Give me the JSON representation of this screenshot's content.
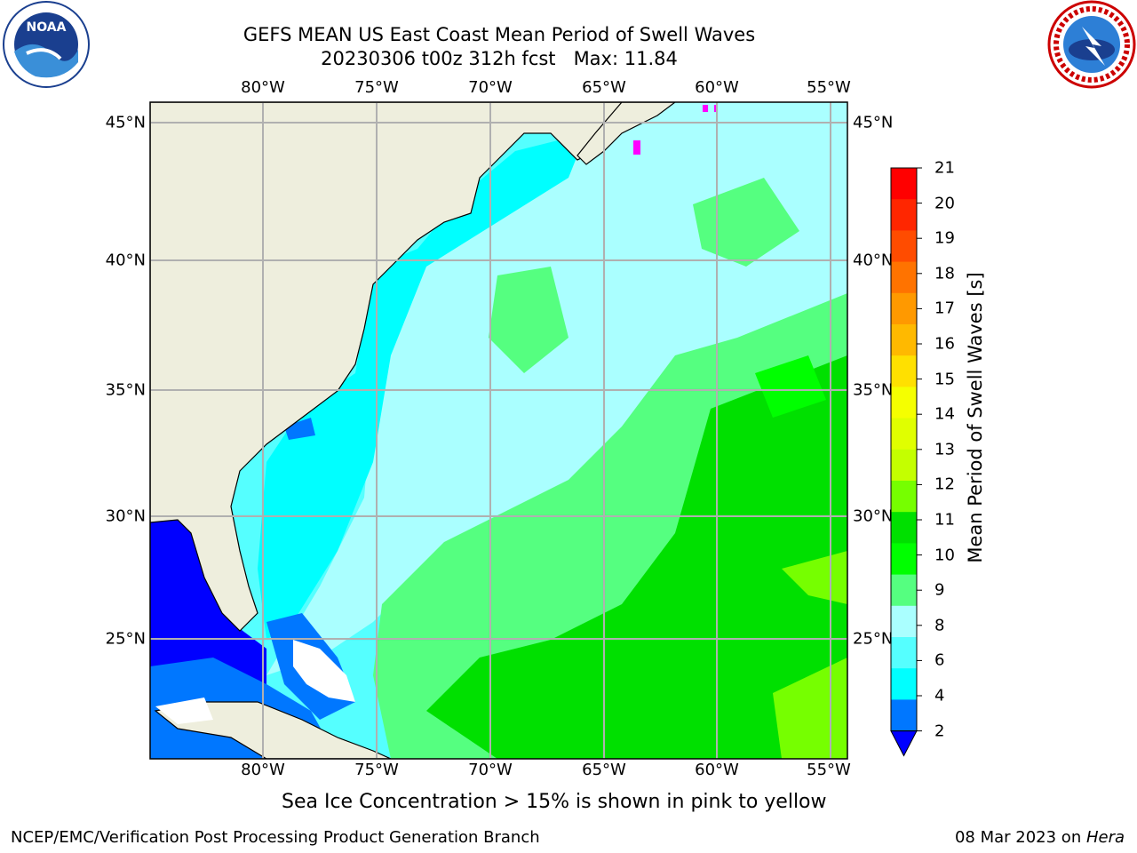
{
  "header": {
    "title": "GEFS MEAN US East Coast Mean Period of Swell Waves",
    "subtitle": "20230306 t00z 312h fcst   Max: 11.84"
  },
  "logos": {
    "left": {
      "icon": "noaa-logo",
      "text": "NOAA"
    },
    "right": {
      "icon": "national-weather-service-logo",
      "text": "NATIONAL WEATHER SERVICE"
    }
  },
  "map": {
    "lon_labels": [
      "80°W",
      "75°W",
      "70°W",
      "65°W",
      "60°W",
      "55°W"
    ],
    "lat_labels": [
      "45°N",
      "40°N",
      "35°N",
      "30°N",
      "25°N"
    ],
    "land_color": "#eeeedd",
    "grid_color": "#b0b0b0"
  },
  "colorbar": {
    "label": "Mean Period of Swell Waves [s]",
    "ticks": [
      "21",
      "20",
      "19",
      "18",
      "17",
      "16",
      "15",
      "14",
      "13",
      "12",
      "11",
      "10",
      "9",
      "8",
      "6",
      "4",
      "2"
    ],
    "colors": [
      "#ff0000",
      "#ff2600",
      "#ff4c00",
      "#ff7300",
      "#ff9900",
      "#ffb900",
      "#ffe000",
      "#f5ff00",
      "#e0ff00",
      "#c4ff00",
      "#76ff00",
      "#00e000",
      "#00ff00",
      "#55ff80",
      "#aaffff",
      "#55ffff",
      "#00ffff",
      "#0077ff"
    ],
    "under_color": "#0000ff"
  },
  "note": "Sea Ice Concentration > 15% is shown in pink to yellow",
  "footer": {
    "left": "NCEP/EMC/Verification Post Processing Product Generation Branch",
    "right_date": "08 Mar 2023 on ",
    "right_host": "Hera"
  }
}
